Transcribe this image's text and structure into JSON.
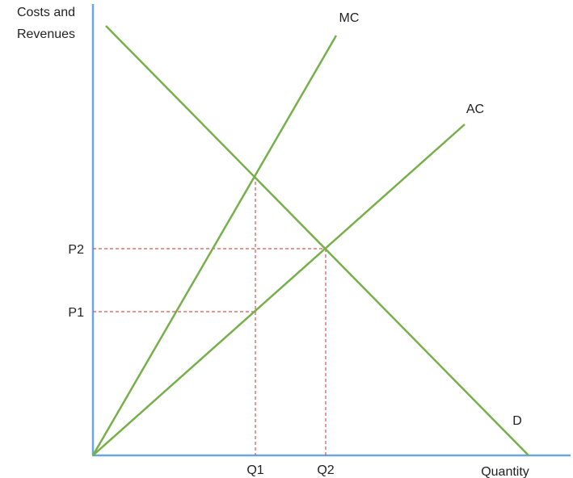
{
  "diagram": {
    "y_axis_label_lines": [
      "Costs and",
      "Revenues"
    ],
    "x_axis_label": "Quantity",
    "curves": {
      "mc": "MC",
      "ac": "AC",
      "d": "D"
    },
    "price_labels": {
      "p1": "P1",
      "p2": "P2"
    },
    "quantity_labels": {
      "q1": "Q1",
      "q2": "Q2"
    }
  },
  "colors": {
    "axes": "#6aa6e3",
    "curves": "#77b04a",
    "guides": "#d9534f",
    "text": "#222222"
  }
}
